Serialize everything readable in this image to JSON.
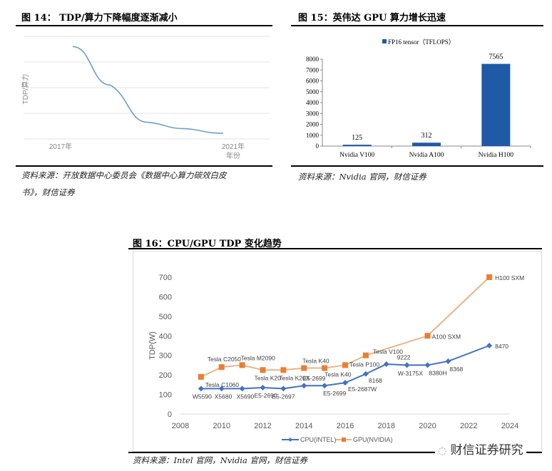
{
  "fig14": {
    "title": "图 14： TDP/算力下降幅度逐渐减小",
    "source_line1": "资料来源：开放数据中心委员会《数据中心算力碳效白皮",
    "source_line2": "书》，财信证券"
  },
  "fig15": {
    "title": "图 15：英伟达 GPU 算力增长迅速",
    "source": "资料来源：Nvidia 官网，财信证券"
  },
  "fig16": {
    "title": "图 16：CPU/GPU TDP 变化趋势",
    "source": "资料来源：Intel 官网，Nvidia 官网，财信证券"
  },
  "watermark": {
    "text": "财信证券研究"
  },
  "chart_data": [
    {
      "type": "line",
      "ylabel": "TDP/算力",
      "xlabel": "年份",
      "x": [
        2017,
        2018,
        2019,
        2020,
        2021
      ],
      "x_tick_labels": [
        "2017年",
        "2021年"
      ],
      "values": [
        3.6,
        2.1,
        0.65,
        0.4,
        0.22
      ],
      "y_ticks_printed": false,
      "grid": true,
      "color": "#6b9fce"
    },
    {
      "type": "bar",
      "categories": [
        "Nvidia V100",
        "Nvidia A100",
        "Nvidia H100"
      ],
      "series": [
        {
          "name": "FP16 tensor（TFLOPS）",
          "values": [
            125,
            312,
            7565
          ]
        }
      ],
      "data_labels": [
        "125",
        "312",
        "7565"
      ],
      "ylim": [
        0,
        8000
      ],
      "yticks": [
        "0",
        "1000",
        "2000",
        "3000",
        "4000",
        "5000",
        "6000",
        "7000",
        "8000"
      ],
      "legend": "top",
      "color": "#1f5aa6"
    },
    {
      "type": "line",
      "ylabel": "TDP(W)",
      "xlim": [
        2008,
        2024
      ],
      "ylim": [
        0,
        700
      ],
      "xticks": [
        "2008",
        "2010",
        "2012",
        "2014",
        "2016",
        "2018",
        "2020",
        "2022",
        "2024"
      ],
      "yticks": [
        "0",
        "100",
        "200",
        "300",
        "400",
        "500",
        "600",
        "700"
      ],
      "legend": "bottom",
      "series": [
        {
          "name": "CPU(INTEL)",
          "color": "#4472c4",
          "marker": "diamond",
          "x": [
            2009,
            2010,
            2011,
            2012,
            2013,
            2014,
            2015,
            2016,
            2017,
            2018,
            2019,
            2020,
            2021,
            2023
          ],
          "values": [
            130,
            130,
            130,
            135,
            130,
            145,
            145,
            160,
            205,
            255,
            250,
            250,
            270,
            350
          ],
          "labels": [
            "W5590",
            "X5680",
            "X5690",
            "E5-2690",
            "E5-2697",
            "E5-2699",
            "E5-2699",
            "E5-2687W",
            "8168",
            "W-3175X",
            "9222",
            "8380H",
            "8368",
            "8470"
          ]
        },
        {
          "name": "GPU(NVIDIA)",
          "color": "#ed7d31",
          "line_color": "#e9b48a",
          "marker": "square",
          "x": [
            2009,
            2010,
            2011,
            2012,
            2013,
            2014,
            2015,
            2016,
            2017,
            2020,
            2023
          ],
          "values": [
            190,
            240,
            250,
            225,
            225,
            235,
            235,
            250,
            300,
            400,
            700
          ],
          "labels": [
            "Tesla C1060",
            "Tesla C2050",
            "Tesla M2090",
            "Tesla K20",
            "Tesla K20X",
            "Tesla K40",
            "Tesla K40",
            "Tesla P100",
            "Tesla V100",
            "A100 SXM",
            "H100 SXM"
          ]
        }
      ]
    }
  ]
}
